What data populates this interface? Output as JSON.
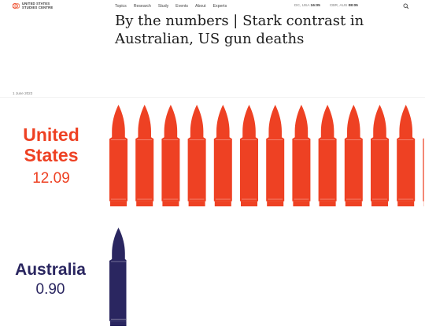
{
  "header": {
    "logo_text": [
      "UNITED STATES",
      "STUDIES CENTRE"
    ],
    "nav": [
      "Topics",
      "Research",
      "Study",
      "Events",
      "About",
      "Experts"
    ],
    "clocks": [
      {
        "city": "DC, USA",
        "time": "16:05"
      },
      {
        "city": "CBR, AUS",
        "time": "08:05"
      }
    ]
  },
  "article": {
    "title": "By the numbers | Stark contrast in Australian, US gun deaths",
    "date": "1 June 2022"
  },
  "chart_data": {
    "type": "bar",
    "categories": [
      "United States",
      "Australia"
    ],
    "values": [
      12.09,
      0.9
    ],
    "category_labels": [
      "United\nStates",
      "Australia"
    ],
    "value_labels": [
      "12.09",
      "0.90"
    ],
    "colors": {
      "United States": "#ee4123",
      "Australia": "#2a2660"
    }
  }
}
